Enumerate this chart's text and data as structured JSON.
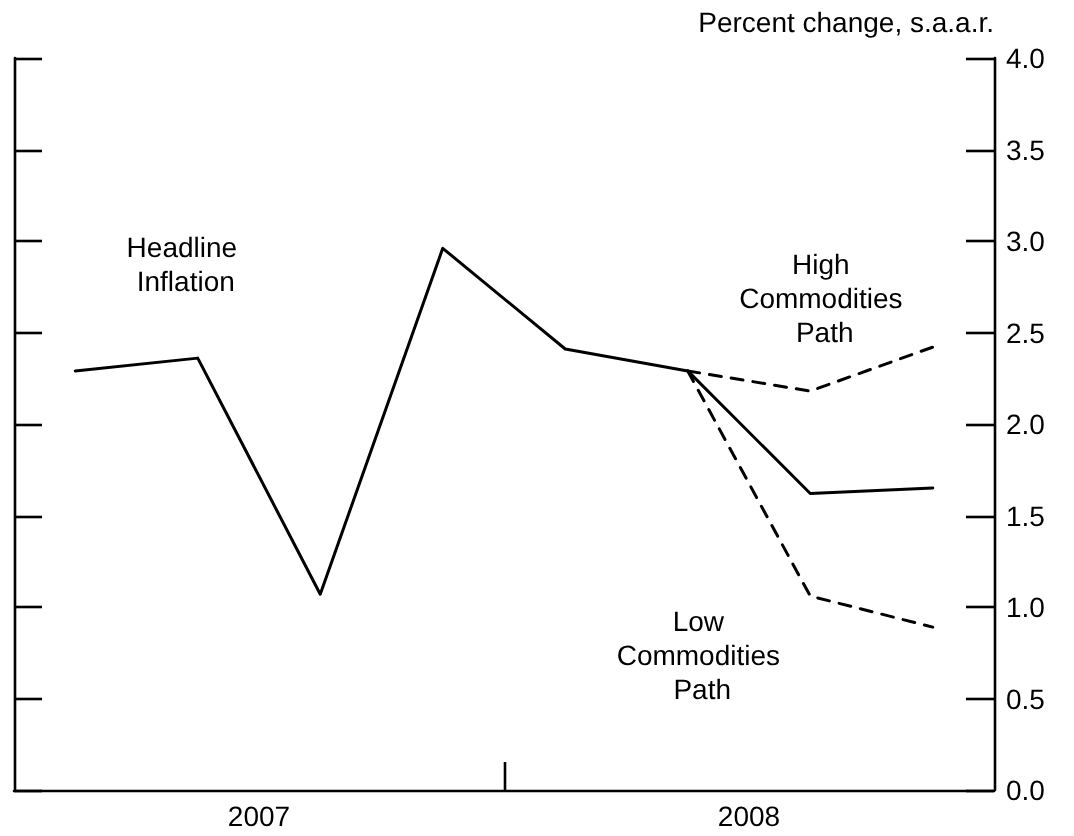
{
  "chart_data": {
    "type": "line",
    "ylabel": "Percent change, s.a.a.r.",
    "xlim": [
      2007,
      2009
    ],
    "xticks": [
      {
        "value": 2007.5,
        "label": "2007"
      },
      {
        "value": 2008,
        "label": null
      },
      {
        "value": 2008.5,
        "label": "2008"
      }
    ],
    "ylim": [
      0,
      4
    ],
    "yticks": [
      {
        "value": 0,
        "label": "0.0"
      },
      {
        "value": 0.5,
        "label": "0.5"
      },
      {
        "value": 1,
        "label": "1.0"
      },
      {
        "value": 1.5,
        "label": "1.5"
      },
      {
        "value": 2,
        "label": "2.0"
      },
      {
        "value": 2.5,
        "label": "2.5"
      },
      {
        "value": 3,
        "label": "3.0"
      },
      {
        "value": 3.5,
        "label": "3.5"
      },
      {
        "value": 4,
        "label": "4.0"
      }
    ],
    "grid": false,
    "legend": false,
    "marker": "none",
    "series": [
      {
        "name": "Headline Inflation",
        "color": "#000000",
        "line_style": "solid",
        "x": [
          2007.125,
          2007.375,
          2007.625,
          2007.875,
          2008.125,
          2008.375,
          2008.625,
          2008.875
        ],
        "values": [
          2.29,
          2.36,
          1.07,
          2.96,
          2.41,
          2.29,
          1.62,
          1.65
        ]
      },
      {
        "name": "High Commodities Path",
        "color": "#000000",
        "line_style": "dashed",
        "x": [
          2008.375,
          2008.625,
          2008.875
        ],
        "values": [
          2.29,
          2.18,
          2.42
        ]
      },
      {
        "name": "Low Commodities Path",
        "color": "#000000",
        "line_style": "dashed",
        "x": [
          2008.375,
          2008.625,
          2008.875
        ],
        "values": [
          2.29,
          1.06,
          0.89
        ]
      }
    ]
  }
}
